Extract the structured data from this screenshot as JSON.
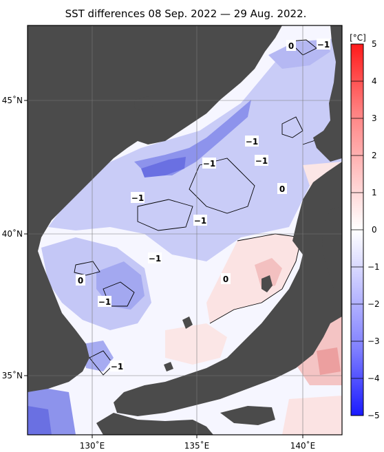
{
  "title": "SST differences 08 Sep. 2022 — 29 Aug. 2022.",
  "x_axis": {
    "ticks": [
      "130˚E",
      "135˚E",
      "140˚E"
    ]
  },
  "y_axis": {
    "ticks": [
      "45˚N",
      "40˚N",
      "35˚N"
    ]
  },
  "colorbar": {
    "unit": "[°C]",
    "ticks": [
      "5",
      "4",
      "3",
      "2",
      "1",
      "0",
      "−1",
      "−2",
      "−3",
      "−4",
      "−5"
    ],
    "low_color": "#1414ff",
    "mid_color": "#ffffff",
    "high_color": "#ff1414"
  },
  "contour_labels": [
    "0",
    "−1",
    "−1",
    "−1",
    "−1",
    "0",
    "−1",
    "−1",
    "−1",
    "0",
    "0",
    "−1",
    "−1"
  ],
  "colors": {
    "land": "#4b4b4b",
    "grid": "#7a7a7a"
  }
}
